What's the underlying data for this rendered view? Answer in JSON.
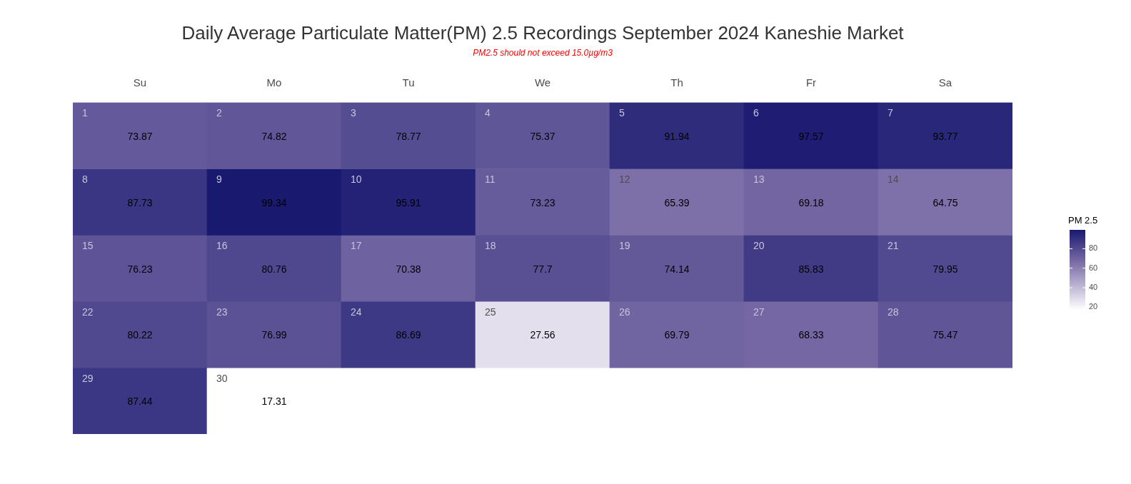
{
  "chart_data": {
    "type": "heatmap",
    "title": "Daily Average Particulate Matter(PM) 2.5 Recordings September 2024 Kaneshie Market",
    "subtitle": "PM2.5 should not exceed 15.0µg/m3",
    "categories": [
      "Su",
      "Mo",
      "Tu",
      "We",
      "Th",
      "Fr",
      "Sa"
    ],
    "y_categories": [
      null,
      null,
      null,
      null,
      null
    ],
    "cells": [
      [
        73.87,
        74.82,
        78.77,
        75.37,
        91.94,
        97.57,
        93.77
      ],
      [
        87.73,
        99.34,
        95.91,
        73.23,
        65.39,
        69.18,
        64.75
      ],
      [
        76.23,
        80.76,
        70.38,
        77.7,
        74.14,
        85.83,
        79.95
      ],
      [
        80.22,
        76.99,
        86.69,
        27.56,
        69.79,
        68.33,
        75.47
      ],
      [
        87.44,
        17.31,
        null,
        null,
        null,
        null,
        null
      ]
    ],
    "annotations": [
      "1",
      "2",
      "3",
      "4",
      "5",
      "6",
      "7",
      "8",
      "9",
      "10",
      "11",
      "12",
      "13",
      "14",
      "15",
      "16",
      "17",
      "18",
      "19",
      "20",
      "21",
      "22",
      "23",
      "24",
      "25",
      "26",
      "27",
      "28",
      "29",
      "30"
    ],
    "data_labels": true,
    "clabel": "PM 2.5",
    "clim": [
      17.31,
      99.34
    ],
    "cticks": [
      20,
      40,
      60,
      80
    ]
  }
}
